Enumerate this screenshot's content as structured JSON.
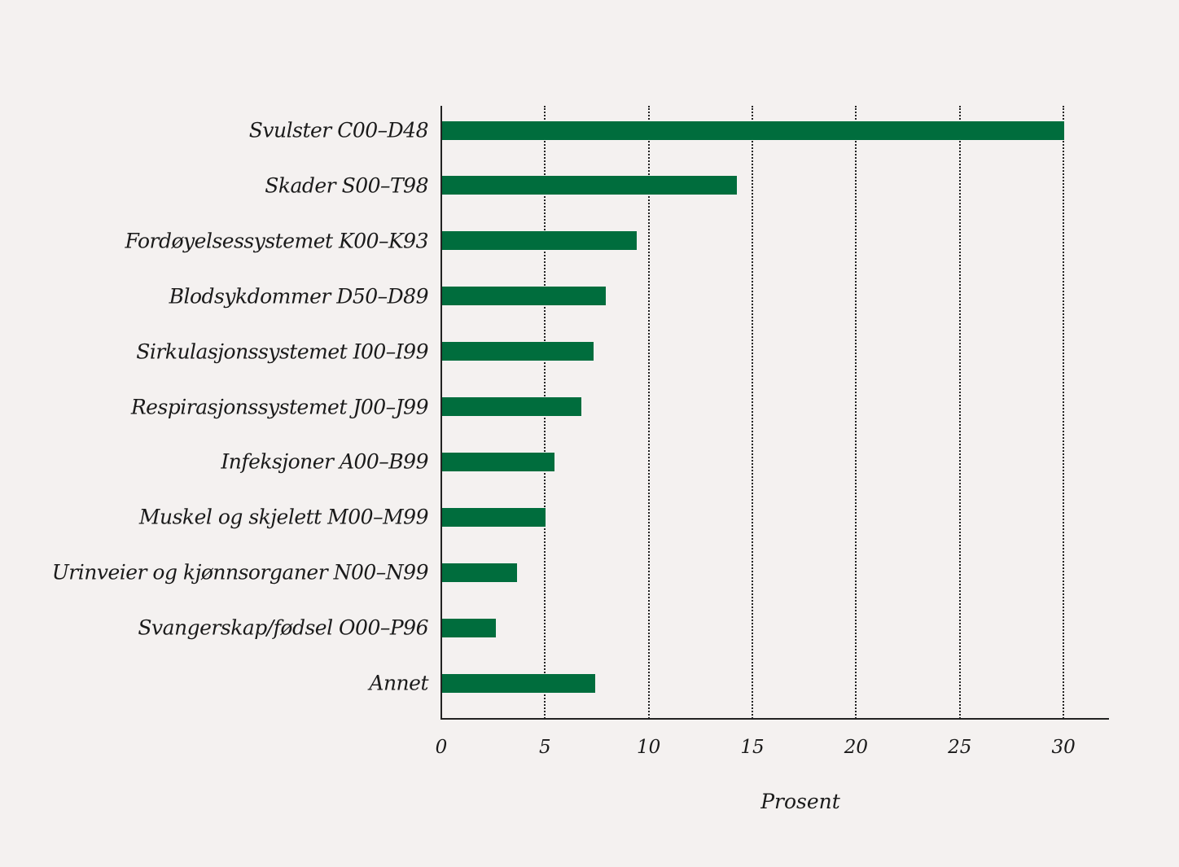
{
  "chart_data": {
    "type": "bar",
    "orientation": "horizontal",
    "title": "",
    "xlabel": "Prosent",
    "ylabel": "",
    "xlim": [
      0,
      32
    ],
    "xticks": [
      0,
      5,
      10,
      15,
      20,
      25,
      30
    ],
    "grid": "vertical dotted",
    "bar_color": "#006d3d",
    "categories": [
      "Svulster C00–D48",
      "Skader S00–T98",
      "Fordøyelsessystemet K00–K93",
      "Blodsykdommer D50–D89",
      "Sirkulasjonssystemet I00–I99",
      "Respirasjonssystemet J00–J99",
      "Infeksjoner A00–B99",
      "Muskel og skjelett M00–M99",
      "Urinveier og kjønnsorganer N00–N99",
      "Svangerskap/fødsel O00–P96",
      "Annet"
    ],
    "values": [
      30.0,
      14.2,
      9.4,
      7.9,
      7.3,
      6.7,
      5.4,
      5.0,
      3.6,
      2.6,
      7.4
    ]
  },
  "axis": {
    "xlabel": "Prosent",
    "ticks": [
      "0",
      "5",
      "10",
      "15",
      "20",
      "25",
      "30"
    ]
  }
}
